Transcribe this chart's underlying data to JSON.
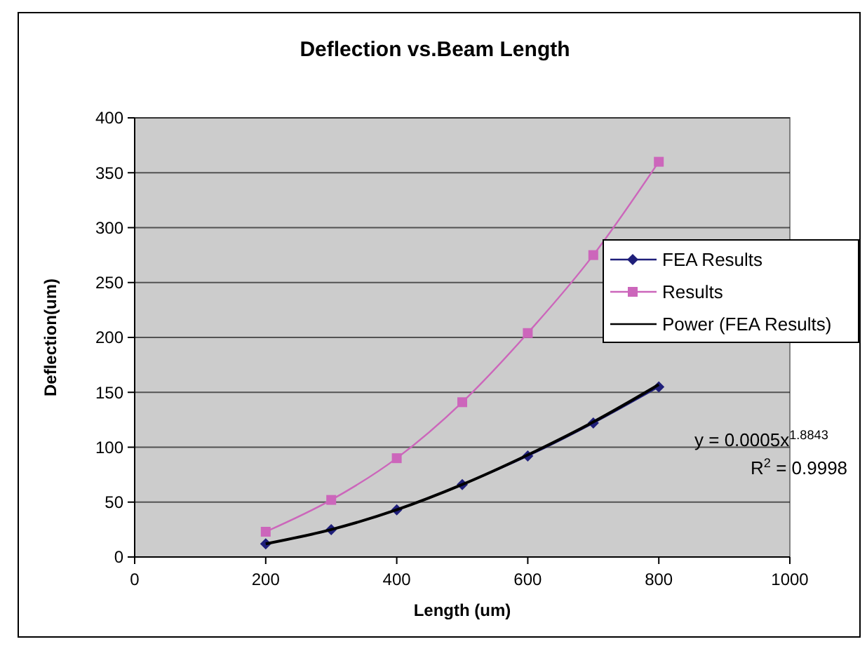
{
  "chart_data": {
    "type": "line",
    "title": "Deflection vs.Beam Length",
    "xlabel": "Length (um)",
    "ylabel": "Deflection(um)",
    "x": [
      200,
      300,
      400,
      500,
      600,
      700,
      800
    ],
    "series": [
      {
        "name": "FEA Results",
        "color": "#1f1f7a",
        "marker": "diamond",
        "values": [
          12,
          25,
          43,
          66,
          92,
          122,
          155
        ]
      },
      {
        "name": "Results",
        "color": "#cc66bb",
        "marker": "square",
        "values": [
          23,
          52,
          90,
          141,
          204,
          275,
          360
        ]
      },
      {
        "name": "Power (FEA Results)",
        "color": "#000000",
        "marker": "none",
        "values": [
          12,
          25,
          43,
          66,
          93,
          123,
          157
        ]
      }
    ],
    "xlim": [
      0,
      1000
    ],
    "xticks": [
      0,
      200,
      400,
      600,
      800,
      1000
    ],
    "ylim": [
      0,
      400
    ],
    "yticks": [
      0,
      50,
      100,
      150,
      200,
      250,
      300,
      350,
      400
    ],
    "grid": "y",
    "legend": "right",
    "annotations": [
      "y = 0.0005x$^{1.8843}$",
      "R$^{2}$ = 0.9998"
    ]
  }
}
